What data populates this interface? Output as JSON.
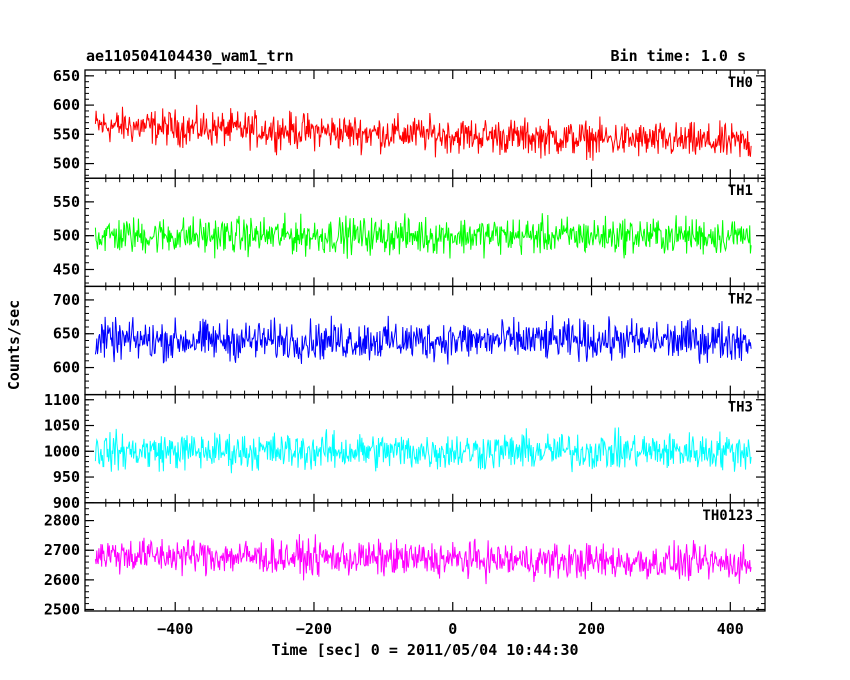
{
  "header": {
    "obs_id": "ae110504104430_wam1_trn",
    "bin_time": "Bin time: 1.0 s"
  },
  "chart_data": {
    "type": "line",
    "title": "ae110504104430_wam1_trn",
    "subtitle": "Bin time: 1.0 s",
    "xlabel": "Time [sec] 0 = 2011/05/04 10:44:30",
    "ylabel": "Counts/sec",
    "xlim": [
      -530,
      450
    ],
    "data_x_range": [
      -515,
      430
    ],
    "bin_time": 1.0,
    "x_ticks": [
      -400,
      -200,
      0,
      200,
      400
    ],
    "x_tick_labels": [
      "−400",
      "−200",
      "0",
      "200",
      "400"
    ],
    "grid": false,
    "legend": "none",
    "panels": [
      {
        "name": "TH0",
        "color": "#ff0000",
        "ylim": [
          475,
          660
        ],
        "mean": 565,
        "noise_amp": 28,
        "trend": -30,
        "yticks": [
          500,
          550,
          600,
          650
        ],
        "ytick_labels": [
          "500",
          "550",
          "600",
          "650"
        ]
      },
      {
        "name": "TH1",
        "color": "#00ff00",
        "ylim": [
          425,
          585
        ],
        "mean": 500,
        "noise_amp": 25,
        "trend": 0,
        "yticks": [
          450,
          500,
          550
        ],
        "ytick_labels": [
          "450",
          "500",
          "550"
        ]
      },
      {
        "name": "TH2",
        "color": "#0000ff",
        "ylim": [
          560,
          720
        ],
        "mean": 640,
        "noise_amp": 27,
        "trend": 0,
        "yticks": [
          600,
          650,
          700
        ],
        "ytick_labels": [
          "600",
          "650",
          "700"
        ]
      },
      {
        "name": "TH3",
        "color": "#00ffff",
        "ylim": [
          900,
          1110
        ],
        "mean": 1000,
        "noise_amp": 33,
        "trend": 0,
        "yticks": [
          900,
          950,
          1000,
          1050,
          1100
        ],
        "ytick_labels": [
          "900",
          "950",
          "1000",
          "1050",
          "1100"
        ]
      },
      {
        "name": "TH0123",
        "color": "#ff00ff",
        "ylim": [
          2495,
          2860
        ],
        "mean": 2685,
        "noise_amp": 55,
        "trend": -30,
        "yticks": [
          2500,
          2600,
          2700,
          2800
        ],
        "ytick_labels": [
          "2500",
          "2600",
          "2700",
          "2800"
        ]
      }
    ]
  }
}
